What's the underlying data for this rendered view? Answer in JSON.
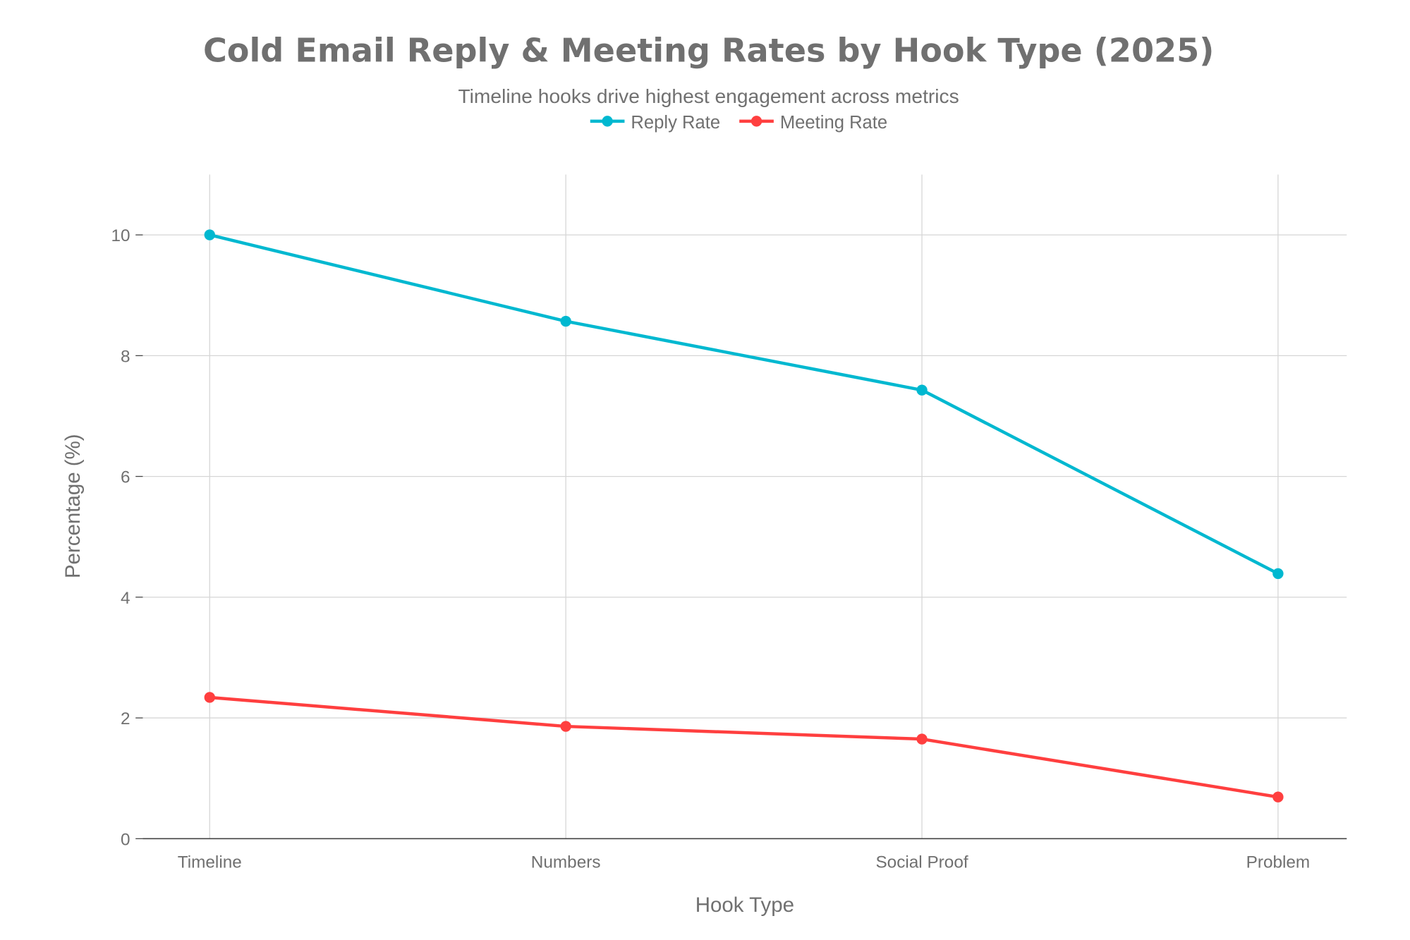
{
  "chart_data": {
    "type": "line",
    "title": "Cold Email Reply & Meeting Rates by Hook Type (2025)",
    "subtitle": "Timeline hooks drive highest engagement across metrics",
    "xlabel": "Hook Type",
    "ylabel": "Percentage (%)",
    "categories": [
      "Timeline",
      "Numbers",
      "Social Proof",
      "Problem"
    ],
    "ylim": [
      0,
      11
    ],
    "yticks": [
      0,
      2,
      4,
      6,
      8,
      10
    ],
    "grid": true,
    "legend_position": "top-center",
    "series": [
      {
        "name": "Reply Rate",
        "color": "#00b8d0",
        "values": [
          10.0,
          8.57,
          7.43,
          4.39
        ]
      },
      {
        "name": "Meeting Rate",
        "color": "#ff3f3f",
        "values": [
          2.34,
          1.86,
          1.65,
          0.69
        ]
      }
    ]
  }
}
